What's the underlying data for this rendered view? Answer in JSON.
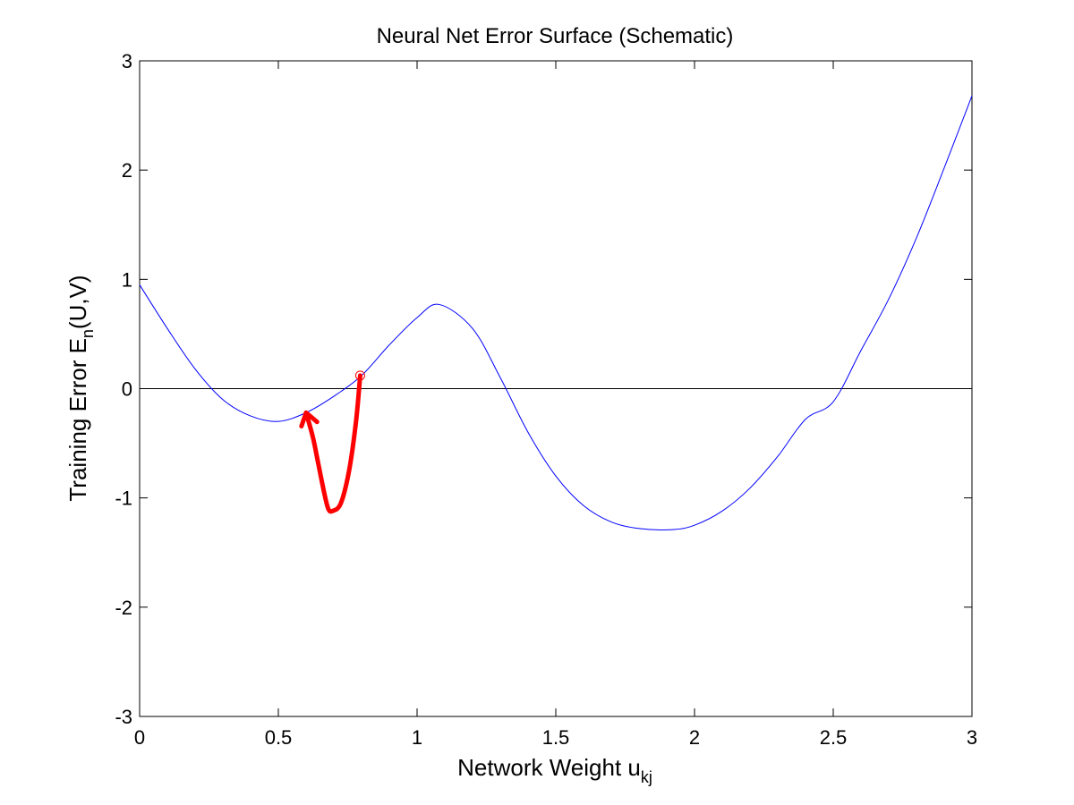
{
  "chart_data": {
    "type": "line",
    "title": "Neural Net Error Surface (Schematic)",
    "xlabel": {
      "main": "Network Weight u",
      "sub": "kj"
    },
    "ylabel": {
      "pre": "Training Error E",
      "sub": "n",
      "post": "(U,V)"
    },
    "xlim": [
      0,
      3
    ],
    "ylim": [
      -3,
      3
    ],
    "xticks": [
      0,
      0.5,
      1,
      1.5,
      2,
      2.5,
      3
    ],
    "xtick_labels": [
      "0",
      "0.5",
      "1",
      "1.5",
      "2",
      "2.5",
      "3"
    ],
    "yticks": [
      -3,
      -2,
      -1,
      0,
      1,
      2,
      3
    ],
    "ytick_labels": [
      "-3",
      "-2",
      "-1",
      "0",
      "1",
      "2",
      "3"
    ],
    "grid": false,
    "series": [
      {
        "color": "#0000ff",
        "x": [
          0,
          0.1,
          0.2,
          0.3,
          0.4,
          0.5,
          0.6,
          0.7,
          0.8,
          0.9,
          1.0,
          1.08,
          1.2,
          1.3,
          1.4,
          1.5,
          1.6,
          1.7,
          1.8,
          1.92,
          2.0,
          2.1,
          2.2,
          2.3,
          2.4,
          2.5,
          2.6,
          2.7,
          2.8,
          2.9,
          3.0
        ],
        "y": [
          0.95,
          0.55,
          0.18,
          -0.1,
          -0.25,
          -0.3,
          -0.22,
          -0.07,
          0.12,
          0.4,
          0.65,
          0.77,
          0.55,
          0.1,
          -0.4,
          -0.8,
          -1.07,
          -1.22,
          -1.28,
          -1.29,
          -1.25,
          -1.12,
          -0.91,
          -0.62,
          -0.28,
          -0.12,
          0.35,
          0.82,
          1.38,
          2.02,
          2.68
        ]
      },
      {
        "color": "#000000",
        "x": [
          0,
          3
        ],
        "y": [
          0,
          0
        ]
      }
    ],
    "marker": {
      "x": 0.795,
      "y": 0.12,
      "color": "#ff0000"
    },
    "arrow": {
      "color": "#ff0000",
      "x": [
        0.795,
        0.78,
        0.755,
        0.725,
        0.695,
        0.68,
        0.665,
        0.645,
        0.625,
        0.6
      ],
      "y": [
        0.12,
        -0.3,
        -0.75,
        -1.05,
        -1.12,
        -1.1,
        -0.95,
        -0.7,
        -0.45,
        -0.22
      ]
    }
  }
}
